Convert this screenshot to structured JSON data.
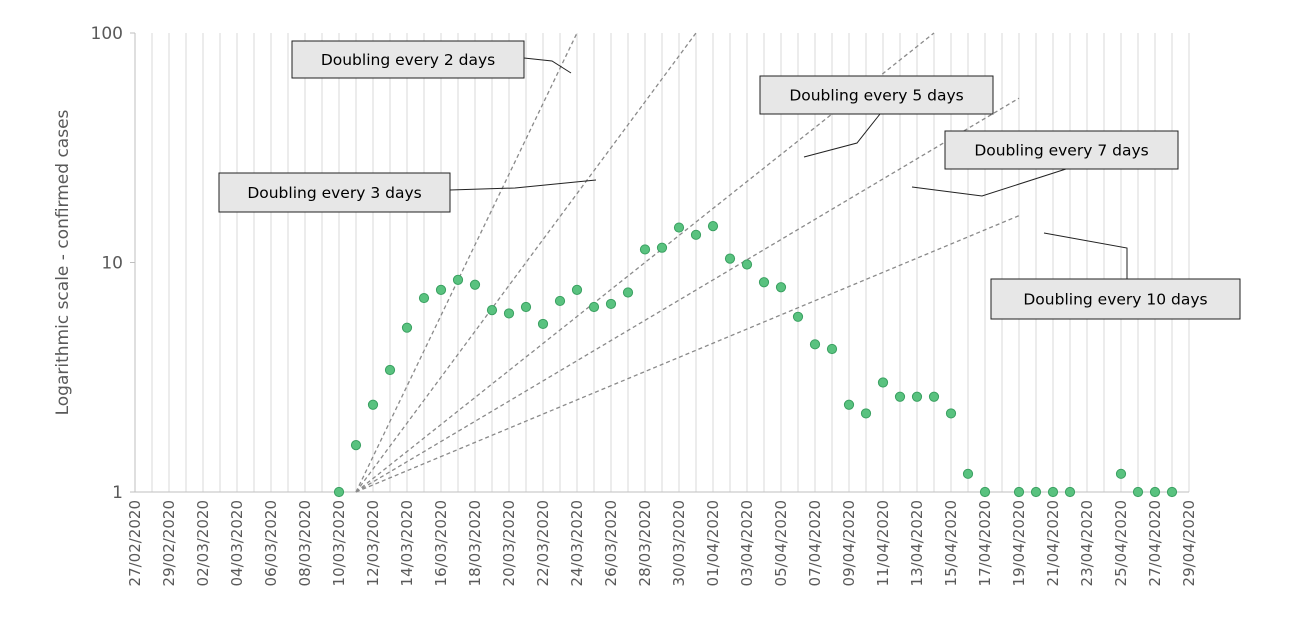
{
  "chart_data": {
    "type": "scatter",
    "title": "",
    "xlabel": "",
    "ylabel": "Logarithmic scale - confirmed cases",
    "y_scale": "log",
    "ylim": [
      1,
      100
    ],
    "y_ticks": [
      "1",
      "10",
      "100"
    ],
    "xlim": [
      "2020-02-27",
      "2020-04-29"
    ],
    "x_tick_labels": [
      "27/02/2020",
      "29/02/2020",
      "02/03/2020",
      "04/03/2020",
      "06/03/2020",
      "08/03/2020",
      "10/03/2020",
      "12/03/2020",
      "14/03/2020",
      "16/03/2020",
      "18/03/2020",
      "20/03/2020",
      "22/03/2020",
      "24/03/2020",
      "26/03/2020",
      "28/03/2020",
      "30/03/2020",
      "01/04/2020",
      "03/04/2020",
      "05/04/2020",
      "07/04/2020",
      "09/04/2020",
      "11/04/2020",
      "13/04/2020",
      "15/04/2020",
      "17/04/2020",
      "19/04/2020",
      "21/04/2020",
      "23/04/2020",
      "25/04/2020",
      "27/04/2020",
      "29/04/2020"
    ],
    "grid": "vertical, one line per day",
    "marker_color": "#59c27f",
    "marker_edge_color": "#3aa061",
    "reference_line_color": "#8a8a8a",
    "series": [
      {
        "values": [
          [
            "2020-03-10",
            1
          ],
          [
            "2020-03-11",
            1.6
          ],
          [
            "2020-03-12",
            2.4
          ],
          [
            "2020-03-13",
            3.4
          ],
          [
            "2020-03-14",
            5.2
          ],
          [
            "2020-03-15",
            7.0
          ],
          [
            "2020-03-16",
            7.6
          ],
          [
            "2020-03-17",
            8.4
          ],
          [
            "2020-03-18",
            8.0
          ],
          [
            "2020-03-19",
            6.2
          ],
          [
            "2020-03-20",
            6.0
          ],
          [
            "2020-03-21",
            6.4
          ],
          [
            "2020-03-22",
            5.4
          ],
          [
            "2020-03-23",
            6.8
          ],
          [
            "2020-03-24",
            7.6
          ],
          [
            "2020-03-25",
            6.4
          ],
          [
            "2020-03-26",
            6.6
          ],
          [
            "2020-03-27",
            7.4
          ],
          [
            "2020-03-28",
            11.4
          ],
          [
            "2020-03-29",
            11.6
          ],
          [
            "2020-03-30",
            14.2
          ],
          [
            "2020-03-31",
            13.2
          ],
          [
            "2020-04-01",
            14.4
          ],
          [
            "2020-04-02",
            10.4
          ],
          [
            "2020-04-03",
            9.8
          ],
          [
            "2020-04-04",
            8.2
          ],
          [
            "2020-04-05",
            7.8
          ],
          [
            "2020-04-06",
            5.8
          ],
          [
            "2020-04-07",
            4.4
          ],
          [
            "2020-04-08",
            4.2
          ],
          [
            "2020-04-09",
            2.4
          ],
          [
            "2020-04-10",
            2.2
          ],
          [
            "2020-04-11",
            3.0
          ],
          [
            "2020-04-12",
            2.6
          ],
          [
            "2020-04-13",
            2.6
          ],
          [
            "2020-04-14",
            2.6
          ],
          [
            "2020-04-15",
            2.2
          ],
          [
            "2020-04-16",
            1.2
          ],
          [
            "2020-04-17",
            1
          ],
          [
            "2020-04-19",
            1
          ],
          [
            "2020-04-20",
            1
          ],
          [
            "2020-04-21",
            1
          ],
          [
            "2020-04-22",
            1
          ],
          [
            "2020-04-25",
            1.2
          ],
          [
            "2020-04-26",
            1
          ],
          [
            "2020-04-27",
            1
          ],
          [
            "2020-04-28",
            1
          ]
        ]
      }
    ],
    "reference_lines": [
      {
        "label": "Doubling every 2 days",
        "doubling_days": 2,
        "start": [
          "2020-03-11",
          1
        ],
        "end": [
          "2020-03-24",
          100
        ]
      },
      {
        "label": "Doubling every 3 days",
        "doubling_days": 3,
        "start": [
          "2020-03-11",
          1
        ],
        "end": [
          "2020-03-31",
          100
        ]
      },
      {
        "label": "Doubling every 5 days",
        "doubling_days": 5,
        "start": [
          "2020-03-11",
          1
        ],
        "end": [
          "2020-04-14",
          100
        ]
      },
      {
        "label": "Doubling every 7 days",
        "doubling_days": 7,
        "start": [
          "2020-03-11",
          1
        ],
        "end": [
          "2020-04-19",
          52
        ]
      },
      {
        "label": "Doubling every 10 days",
        "doubling_days": 10,
        "start": [
          "2020-03-11",
          1
        ],
        "end": [
          "2020-04-19",
          16
        ]
      }
    ]
  }
}
